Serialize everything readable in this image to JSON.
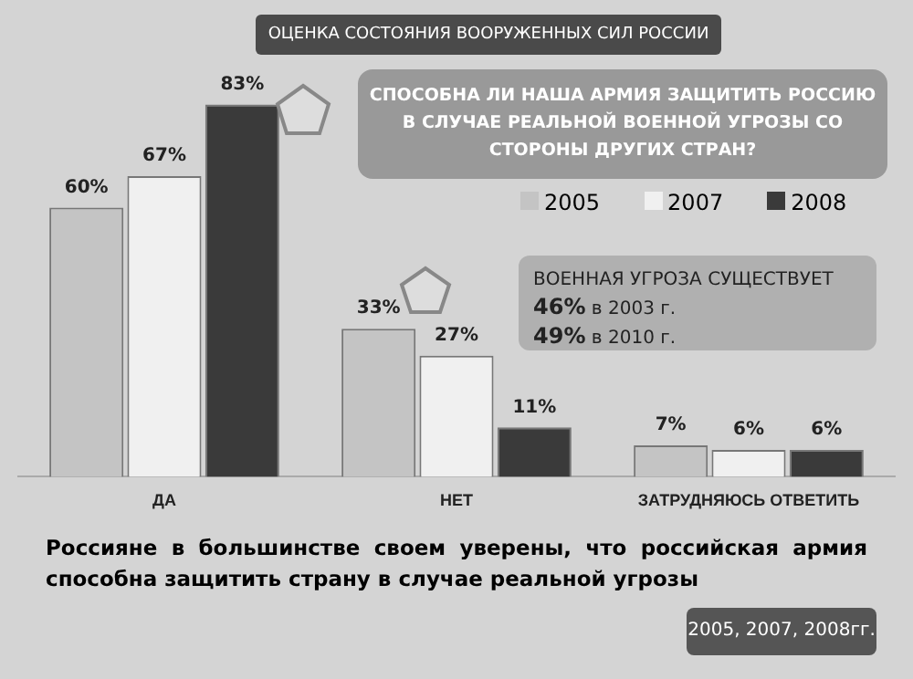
{
  "chart_data": {
    "type": "bar",
    "title": "ОЦЕНКА СОСТОЯНИЯ ВООРУЖЕННЫХ СИЛ РОССИИ",
    "subtitle": "СПОСОБНА ЛИ НАША АРМИЯ ЗАЩИТИТЬ РОССИЮ В СЛУЧАЕ РЕАЛЬНОЙ ВОЕННОЙ УГРОЗЫ СО СТОРОНЫ ДРУГИХ СТРАН?",
    "categories": [
      "ДА",
      "НЕТ",
      "ЗАТРУДНЯЮСЬ ОТВЕТИТЬ"
    ],
    "series": [
      {
        "name": "2005",
        "color": "#c4c4c4",
        "values": [
          60,
          33,
          7
        ],
        "value_labels": [
          "60%",
          "33%",
          "7%"
        ]
      },
      {
        "name": "2007",
        "color": "#f0f0f0",
        "values": [
          67,
          27,
          6
        ],
        "value_labels": [
          "67%",
          "27%",
          "6%"
        ]
      },
      {
        "name": "2008",
        "color": "#3a3a3a",
        "values": [
          83,
          11,
          6
        ],
        "value_labels": [
          "83%",
          "11%",
          "6%"
        ]
      }
    ],
    "ylim": [
      0,
      90
    ],
    "tick_labels": "x",
    "grid": false,
    "legend": "top right",
    "annotations": [
      "ВОЕННАЯ УГРОЗА СУЩЕСТВУЕТ",
      "46% в 2003 г.",
      "49% в 2010 г.",
      "Россияне в большинстве своем уверены, что российская армия способна защитить страну в случае реальной угрозы",
      "2005, 2007, 2008гг."
    ]
  }
}
